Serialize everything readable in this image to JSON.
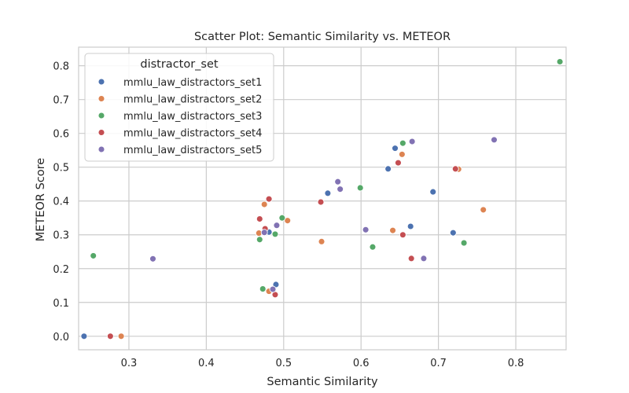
{
  "chart_data": {
    "type": "scatter",
    "title": "Scatter Plot: Semantic Similarity vs. METEOR",
    "xlabel": "Semantic Similarity",
    "ylabel": "METEOR Score",
    "xlim": [
      0.235,
      0.865
    ],
    "ylim": [
      -0.04,
      0.855
    ],
    "xticks": [
      "0.3",
      "0.4",
      "0.5",
      "0.6",
      "0.7",
      "0.8"
    ],
    "yticks": [
      "0.0",
      "0.1",
      "0.2",
      "0.3",
      "0.4",
      "0.5",
      "0.6",
      "0.7",
      "0.8"
    ],
    "grid": true,
    "legend": {
      "title": "distractor_set",
      "placement": "top-left"
    },
    "series": [
      {
        "name": "mmlu_law_distractors_set1",
        "color": "#4c72b0",
        "points": [
          [
            0.242,
            0.0
          ],
          [
            0.49,
            0.153
          ],
          [
            0.481,
            0.308
          ],
          [
            0.557,
            0.423
          ],
          [
            0.635,
            0.495
          ],
          [
            0.644,
            0.556
          ],
          [
            0.664,
            0.325
          ],
          [
            0.693,
            0.427
          ],
          [
            0.719,
            0.306
          ]
        ]
      },
      {
        "name": "mmlu_law_distractors_set2",
        "color": "#dd8452",
        "points": [
          [
            0.29,
            0.0
          ],
          [
            0.468,
            0.305
          ],
          [
            0.475,
            0.39
          ],
          [
            0.481,
            0.133
          ],
          [
            0.505,
            0.342
          ],
          [
            0.549,
            0.28
          ],
          [
            0.641,
            0.313
          ],
          [
            0.653,
            0.538
          ],
          [
            0.726,
            0.494
          ],
          [
            0.758,
            0.374
          ]
        ]
      },
      {
        "name": "mmlu_law_distractors_set3",
        "color": "#55a868",
        "points": [
          [
            0.254,
            0.238
          ],
          [
            0.469,
            0.286
          ],
          [
            0.473,
            0.14
          ],
          [
            0.489,
            0.302
          ],
          [
            0.498,
            0.35
          ],
          [
            0.599,
            0.439
          ],
          [
            0.615,
            0.264
          ],
          [
            0.654,
            0.571
          ],
          [
            0.733,
            0.276
          ],
          [
            0.857,
            0.812
          ]
        ]
      },
      {
        "name": "mmlu_law_distractors_set4",
        "color": "#c44e52",
        "points": [
          [
            0.276,
            0.0
          ],
          [
            0.469,
            0.347
          ],
          [
            0.476,
            0.318
          ],
          [
            0.481,
            0.406
          ],
          [
            0.489,
            0.123
          ],
          [
            0.548,
            0.397
          ],
          [
            0.648,
            0.513
          ],
          [
            0.654,
            0.3
          ],
          [
            0.665,
            0.23
          ],
          [
            0.722,
            0.495
          ]
        ]
      },
      {
        "name": "mmlu_law_distractors_set5",
        "color": "#8172b3",
        "points": [
          [
            0.331,
            0.229
          ],
          [
            0.475,
            0.307
          ],
          [
            0.486,
            0.139
          ],
          [
            0.491,
            0.328
          ],
          [
            0.57,
            0.457
          ],
          [
            0.573,
            0.435
          ],
          [
            0.606,
            0.315
          ],
          [
            0.666,
            0.576
          ],
          [
            0.681,
            0.23
          ],
          [
            0.772,
            0.581
          ]
        ]
      }
    ]
  }
}
